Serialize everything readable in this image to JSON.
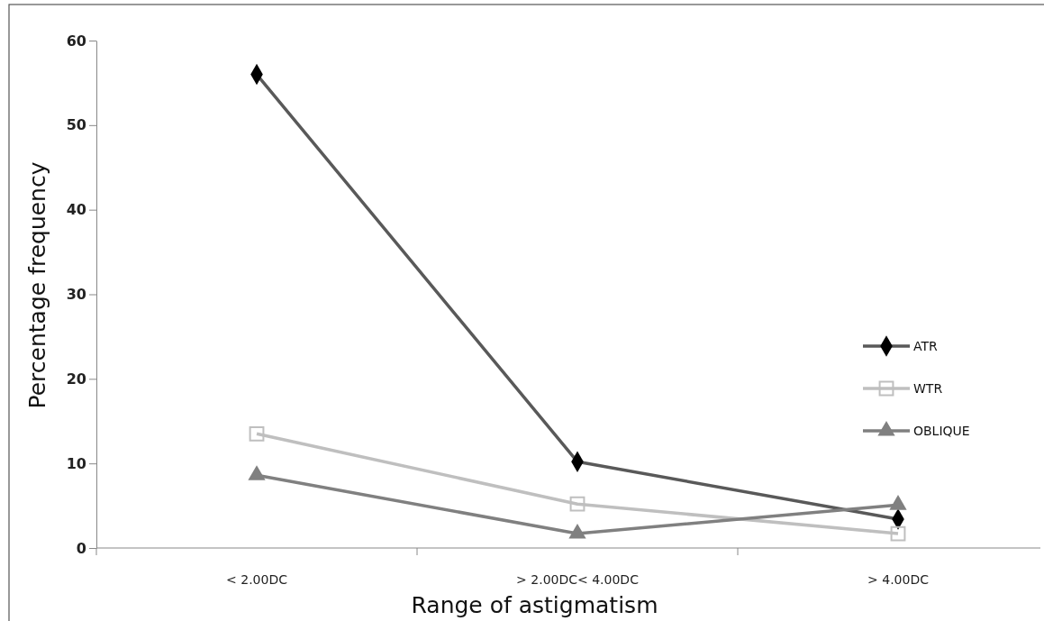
{
  "chart_data": {
    "type": "line",
    "xlabel": "Range of astigmatism",
    "ylabel": "Percentage frequency",
    "categories": [
      "< 2.00DC",
      "> 2.00DC< 4.00DC",
      "> 4.00DC"
    ],
    "series": [
      {
        "name": "ATR",
        "color": "#595959",
        "marker": "diamond",
        "values": [
          56,
          10.2,
          3.4
        ]
      },
      {
        "name": "WTR",
        "color": "#bfbfbf",
        "marker": "square",
        "values": [
          13.5,
          5.2,
          1.7
        ]
      },
      {
        "name": "OBLIQUE",
        "color": "#808080",
        "marker": "triangle",
        "values": [
          8.6,
          1.7,
          5.1
        ]
      }
    ],
    "ylim": [
      0,
      60
    ],
    "yticks": [
      0,
      10,
      20,
      30,
      40,
      50,
      60
    ],
    "grid": false,
    "legend": "right",
    "line_style": "solid"
  }
}
